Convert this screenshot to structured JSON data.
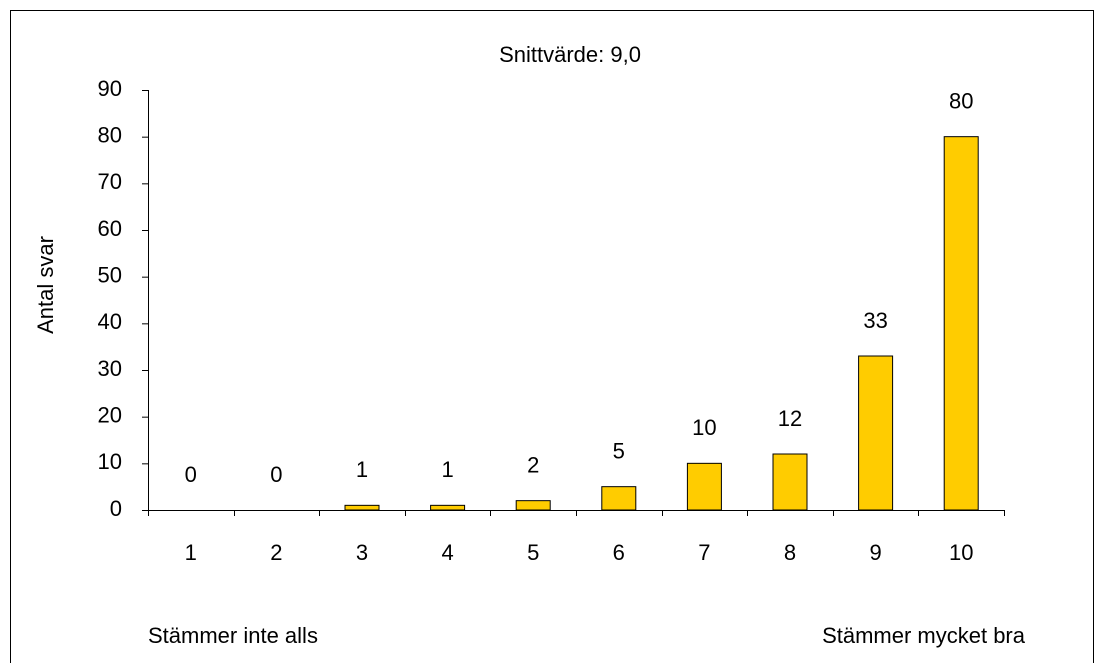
{
  "chart_data": {
    "type": "bar",
    "title": "Snittvärde: 9,0",
    "y_label": "Antal svar",
    "categories": [
      "1",
      "2",
      "3",
      "4",
      "5",
      "6",
      "7",
      "8",
      "9",
      "10"
    ],
    "values": [
      0,
      0,
      1,
      1,
      2,
      5,
      10,
      12,
      33,
      80
    ],
    "color": "#ffcc00",
    "ylim": [
      0,
      90
    ],
    "yticks": [
      0,
      10,
      20,
      30,
      40,
      50,
      60,
      70,
      80,
      90
    ],
    "grid": false,
    "annotations": [
      "Stämmer inte alls",
      "Stämmer mycket bra"
    ]
  }
}
